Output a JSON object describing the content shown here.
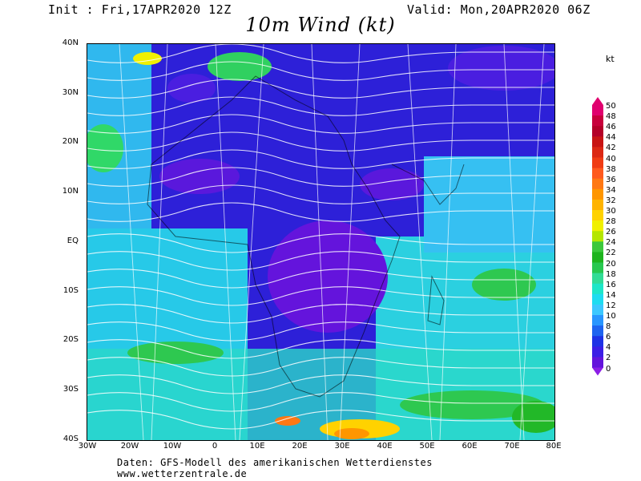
{
  "header": {
    "init": "Init : Fri,17APR2020 12Z",
    "valid": "Valid: Mon,20APR2020 06Z",
    "title": "10m Wind (kt)"
  },
  "axes": {
    "lat_labels": [
      "40N",
      "30N",
      "20N",
      "10N",
      "EQ",
      "10S",
      "20S",
      "30S",
      "40S"
    ],
    "lon_labels": [
      "30W",
      "20W",
      "10W",
      "0",
      "10E",
      "20E",
      "30E",
      "40E",
      "50E",
      "60E",
      "70E",
      "80E"
    ]
  },
  "legend": {
    "unit": "kt",
    "levels": [
      "50",
      "48",
      "46",
      "44",
      "42",
      "40",
      "38",
      "36",
      "34",
      "32",
      "30",
      "28",
      "26",
      "24",
      "22",
      "20",
      "18",
      "16",
      "14",
      "12",
      "10",
      "8",
      "6",
      "4",
      "2",
      "0"
    ],
    "colors": [
      "#e0006e",
      "#c8003c",
      "#b40028",
      "#c81414",
      "#dc2814",
      "#f03c14",
      "#ff5a1e",
      "#ff7814",
      "#ff9600",
      "#ffb400",
      "#ffd200",
      "#f0f000",
      "#b4e600",
      "#3cc83c",
      "#1eb41e",
      "#28c850",
      "#32dc96",
      "#1ee6c8",
      "#1edcf0",
      "#3cc8ff",
      "#2896ff",
      "#1e64f0",
      "#1e32e6",
      "#3c1ee6",
      "#6414dc",
      "#8c1ee6"
    ]
  },
  "footer": {
    "line1": "Daten: GFS-Modell des amerikanischen Wetterdienstes",
    "line2": "www.wetterzentrale.de"
  }
}
